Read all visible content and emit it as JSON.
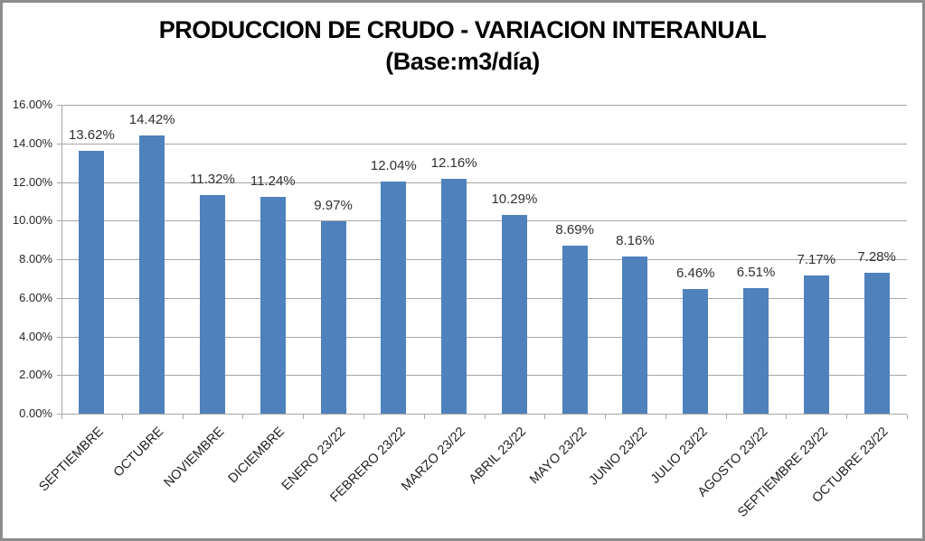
{
  "title": {
    "line1": "PRODUCCION DE CRUDO - VARIACION INTERANUAL",
    "line2": "(Base:m3/día)"
  },
  "chart_data": {
    "type": "bar",
    "title": "PRODUCCION DE CRUDO - VARIACION INTERANUAL (Base:m3/día)",
    "categories": [
      "SEPTIEMBRE",
      "OCTUBRE",
      "NOVIEMBRE",
      "DICIEMBRE",
      "ENERO 23/22",
      "FEBRERO 23/22",
      "MARZO 23/22",
      "ABRIL 23/22",
      "MAYO 23/22",
      "JUNIO 23/22",
      "JULIO 23/22",
      "AGOSTO 23/22",
      "SEPTIEMBRE 23/22",
      "OCTUBRE 23/22"
    ],
    "values": [
      13.62,
      14.42,
      11.32,
      11.24,
      9.97,
      12.04,
      12.16,
      10.29,
      8.69,
      8.16,
      6.46,
      6.51,
      7.17,
      7.28
    ],
    "data_labels": [
      "13.62%",
      "14.42%",
      "11.32%",
      "11.24%",
      "9.97%",
      "12.04%",
      "12.16%",
      "10.29%",
      "8.69%",
      "8.16%",
      "6.46%",
      "6.51%",
      "7.17%",
      "7.28%"
    ],
    "y_ticks": [
      "16.00%",
      "14.00%",
      "12.00%",
      "10.00%",
      "8.00%",
      "6.00%",
      "4.00%",
      "2.00%",
      "0.00%"
    ],
    "ylim": [
      0,
      16
    ],
    "xlabel": "",
    "ylabel": "",
    "grid": true,
    "legend": "none",
    "bar_color": "#4F81BD",
    "gridline_color": "#a6a6a6",
    "axis_color": "#a6a6a6",
    "tick_color": "#a6a6a6",
    "text_color": "#262626",
    "frame_color": "#8c8c8c"
  }
}
